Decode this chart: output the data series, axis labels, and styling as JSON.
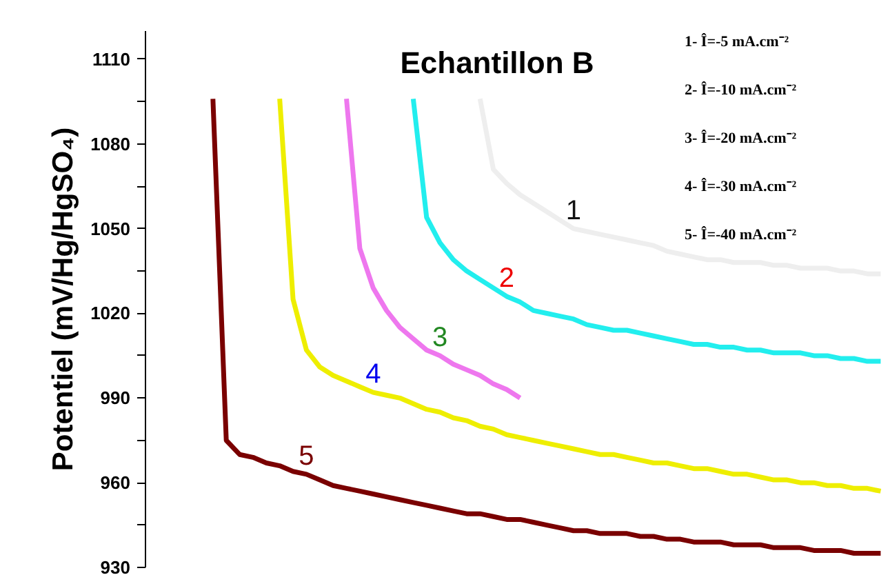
{
  "chart_data": {
    "type": "line",
    "title": "Echantillon B",
    "ylabel": "Potentiel (mV/Hg/HgSO₄)",
    "ylim": [
      930,
      1120
    ],
    "categories": [
      null,
      null,
      null,
      null,
      null,
      null,
      null,
      null,
      null,
      null,
      null,
      null,
      null,
      null,
      null,
      null,
      null,
      null,
      null,
      null,
      null,
      null,
      null,
      null,
      null,
      null,
      null,
      null,
      null,
      null,
      null,
      null,
      null,
      null,
      null,
      null,
      null,
      null,
      null,
      null,
      null,
      null,
      null,
      null,
      null,
      null,
      null,
      null,
      null,
      null,
      null,
      null,
      null,
      null,
      null,
      null
    ],
    "yticks": [
      930,
      {
        "value": 945,
        "label": null
      },
      960,
      {
        "value": 975,
        "label": null
      },
      990,
      {
        "value": 1005,
        "label": null
      },
      1020,
      {
        "value": 1035,
        "label": null
      },
      1050,
      {
        "value": 1065,
        "label": null
      },
      1080,
      {
        "value": 1095,
        "label": null
      },
      1110
    ],
    "tick_labels": "y",
    "grid": false,
    "marker": "none",
    "line_style": "solid",
    "series": [
      {
        "name": "1",
        "color": "#eeeeee",
        "values": [
          null,
          null,
          null,
          null,
          null,
          null,
          null,
          null,
          null,
          null,
          null,
          null,
          null,
          null,
          null,
          null,
          null,
          null,
          null,
          null,
          null,
          null,
          null,
          null,
          null,
          1096,
          1071,
          1066,
          1062,
          1059,
          1056,
          1053,
          1050,
          1049,
          1048,
          1047,
          1046,
          1045,
          1044,
          1042,
          1041,
          1040,
          1039,
          1039,
          1038,
          1038,
          1038,
          1037,
          1037,
          1036,
          1036,
          1036,
          1035,
          1035,
          1034,
          1034
        ]
      },
      {
        "name": "2",
        "color": "#22eeee",
        "values": [
          null,
          null,
          null,
          null,
          null,
          null,
          null,
          null,
          null,
          null,
          null,
          null,
          null,
          null,
          null,
          null,
          null,
          null,
          null,
          null,
          1096,
          1054,
          1045,
          1039,
          1035,
          1032,
          1029,
          1026,
          1024,
          1021,
          1020,
          1019,
          1018,
          1016,
          1015,
          1014,
          1014,
          1013,
          1012,
          1011,
          1010,
          1009,
          1009,
          1008,
          1008,
          1007,
          1007,
          1006,
          1006,
          1006,
          1005,
          1005,
          1004,
          1004,
          1003,
          1003
        ]
      },
      {
        "name": "3",
        "color": "#ee77ee",
        "values": [
          null,
          null,
          null,
          null,
          null,
          null,
          null,
          null,
          null,
          null,
          null,
          null,
          null,
          null,
          null,
          1096,
          1043,
          1029,
          1021,
          1015,
          1011,
          1007,
          1005,
          1002,
          1000,
          998,
          995,
          993,
          990,
          null,
          null,
          null,
          null,
          null,
          null,
          null,
          null,
          null,
          null,
          null,
          null,
          null,
          null,
          null,
          null,
          null,
          null,
          null,
          null,
          null,
          null,
          null,
          null,
          null,
          null,
          null
        ]
      },
      {
        "name": "4",
        "color": "#eeee00",
        "values": [
          null,
          null,
          null,
          null,
          null,
          null,
          null,
          null,
          null,
          null,
          1096,
          1025,
          1007,
          1001,
          998,
          996,
          994,
          992,
          991,
          990,
          988,
          986,
          985,
          983,
          982,
          980,
          979,
          977,
          976,
          975,
          974,
          973,
          972,
          971,
          970,
          970,
          969,
          968,
          967,
          967,
          966,
          965,
          965,
          964,
          963,
          963,
          962,
          961,
          961,
          960,
          960,
          959,
          959,
          958,
          958,
          957
        ]
      },
      {
        "name": "5",
        "color": "#7a0000",
        "values": [
          null,
          null,
          null,
          null,
          null,
          1096,
          975,
          970,
          969,
          967,
          966,
          964,
          963,
          961,
          959,
          958,
          957,
          956,
          955,
          954,
          953,
          952,
          951,
          950,
          949,
          949,
          948,
          947,
          947,
          946,
          945,
          944,
          943,
          943,
          942,
          942,
          942,
          941,
          941,
          940,
          940,
          939,
          939,
          939,
          938,
          938,
          938,
          937,
          937,
          937,
          936,
          936,
          936,
          935,
          935,
          935
        ]
      }
    ],
    "annotations": [
      "1- Î=-5 mA.cm⁻²",
      "2- Î=-10 mA.cm⁻²",
      "3- Î=-20  mA.cm⁻²",
      "4- Î=-30  mA.cm⁻²",
      "5- Î=-40  mA.cm⁻²"
    ]
  }
}
